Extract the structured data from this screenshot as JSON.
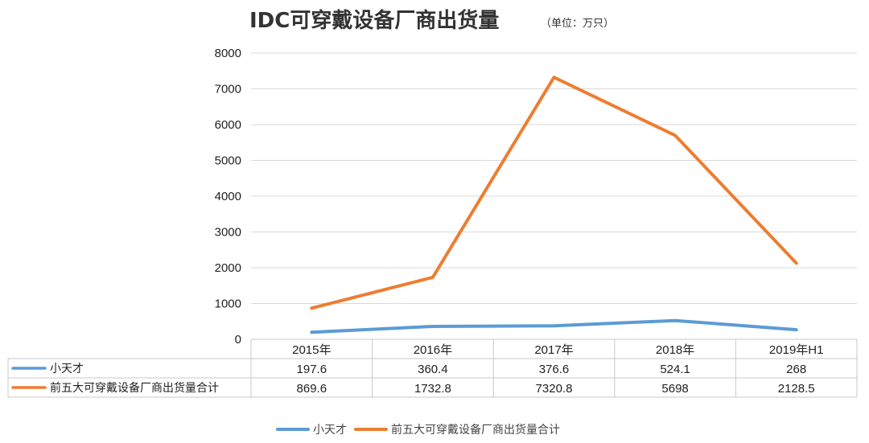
{
  "chart_data": {
    "type": "line",
    "title": "IDC可穿戴设备厂商出货量",
    "unit": "（单位：万只）",
    "categories": [
      "2015年",
      "2016年",
      "2017年",
      "2018年",
      "2019年H1"
    ],
    "ylim": [
      0,
      8000
    ],
    "yticks": [
      0,
      1000,
      2000,
      3000,
      4000,
      5000,
      6000,
      7000,
      8000
    ],
    "grid": true,
    "legend_position": "bottom",
    "series": [
      {
        "name": "小天才",
        "color": "#5B9BD5",
        "values": [
          197.6,
          360.4,
          376.6,
          524.1,
          268
        ],
        "labels": [
          "197.6",
          "360.4",
          "376.6",
          "524.1",
          "268"
        ]
      },
      {
        "name": "前五大可穿戴设备厂商出货量合计",
        "color": "#ED7D31",
        "values": [
          869.6,
          1732.8,
          7320.8,
          5698,
          2128.5
        ],
        "labels": [
          "869.6",
          "1732.8",
          "7320.8",
          "5698",
          "2128.5"
        ]
      }
    ]
  }
}
